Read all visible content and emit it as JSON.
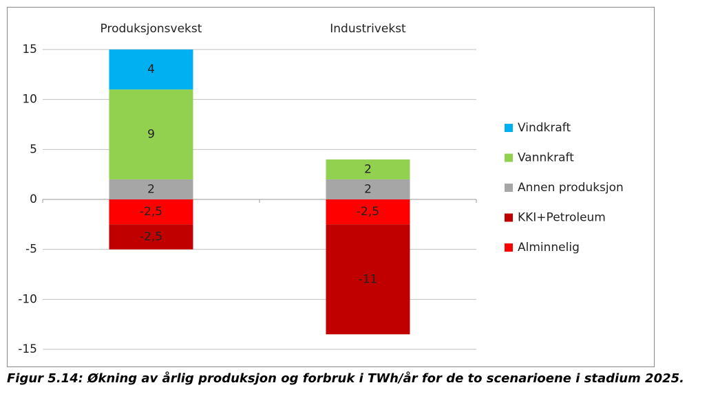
{
  "chart_data": {
    "type": "stacked-bar",
    "categories": [
      "Produksjonsvekst",
      "Industrivekst"
    ],
    "series": [
      {
        "name": "Alminnelig",
        "color": "#ff0000",
        "values": [
          -2.5,
          -2.5
        ],
        "value_labels": [
          "-2,5",
          "-2,5"
        ]
      },
      {
        "name": "KKI+Petroleum",
        "color": "#c00000",
        "values": [
          -2.5,
          -11
        ],
        "value_labels": [
          "-2,5",
          "-11"
        ]
      },
      {
        "name": "Annen produksjon",
        "color": "#a6a6a6",
        "values": [
          2,
          2
        ]
      },
      {
        "name": "Vannkraft",
        "color": "#92d050",
        "values": [
          9,
          2
        ]
      },
      {
        "name": "Vindkraft",
        "color": "#00b0f0",
        "values": [
          4,
          null
        ]
      }
    ],
    "ylim": [
      -15,
      15
    ],
    "yticks": [
      -15,
      -10,
      -5,
      0,
      5,
      10,
      15
    ],
    "grid": true,
    "legend": "right"
  },
  "caption": "Figur 5.14: Økning av årlig produksjon og forbruk  i TWh/år for de to scenarioene i stadium 2025."
}
